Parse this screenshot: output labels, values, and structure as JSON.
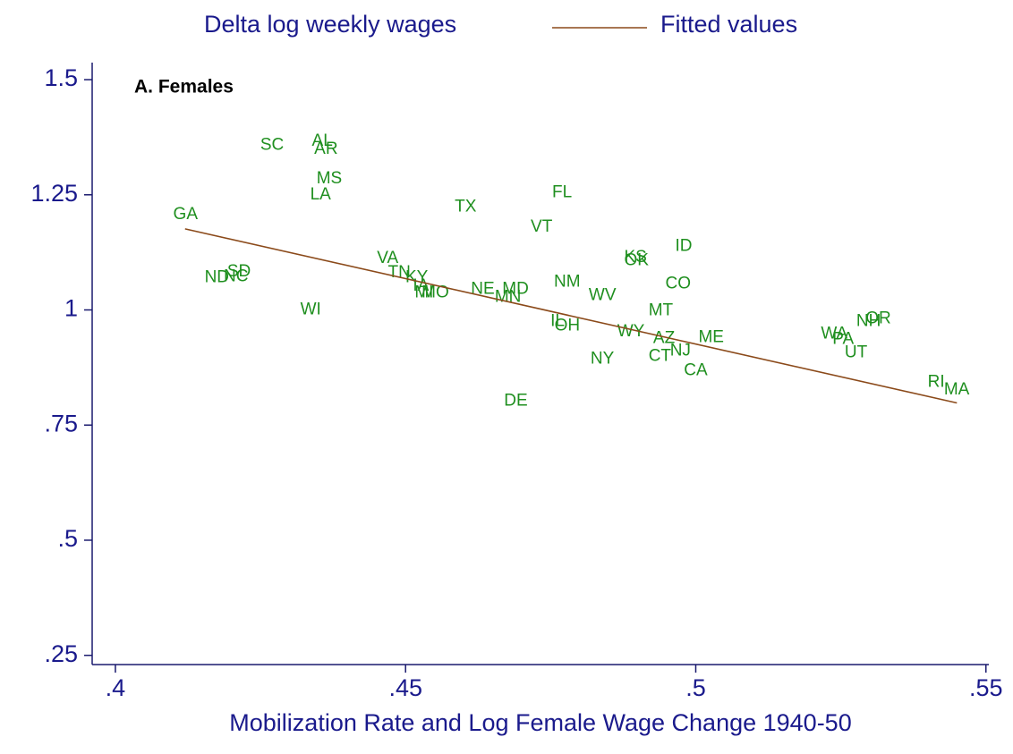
{
  "chart_data": {
    "type": "scatter",
    "title": "A. Females",
    "x_label": "Mobilization Rate and Log Female Wage Change 1940-50",
    "xlim": [
      0.396,
      0.5505
    ],
    "ylim": [
      0.23,
      1.537
    ],
    "xticks": [
      {
        "value": 0.4,
        "label": ".4"
      },
      {
        "value": 0.45,
        "label": ".45"
      },
      {
        "value": 0.5,
        "label": ".5"
      },
      {
        "value": 0.55,
        "label": ".55"
      }
    ],
    "yticks": [
      {
        "value": 0.25,
        "label": ".25"
      },
      {
        "value": 0.5,
        "label": ".5"
      },
      {
        "value": 0.75,
        "label": ".75"
      },
      1,
      1.25,
      1.5
    ],
    "legend": "top",
    "series": [
      {
        "name": "Delta log weekly wages",
        "color": "#1f8f1f",
        "type": "scatter",
        "labels": [
          "GA",
          "SC",
          "AL",
          "AR",
          "MS",
          "LA",
          "TX",
          "FL",
          "VT",
          "ID",
          "KS",
          "OK",
          "CO",
          "NM",
          "WV",
          "MD",
          "NE",
          "MN",
          "VA",
          "TN",
          "KY",
          "NC",
          "SD",
          "ND",
          "MI",
          "MO",
          "IA",
          "IL",
          "OH",
          "WI",
          "MT",
          "NH",
          "OR",
          "WA",
          "PA",
          "UT",
          "WY",
          "AZ",
          "ME",
          "NJ",
          "CT",
          "NY",
          "CA",
          "RI",
          "MA",
          "DE"
        ],
        "x": [
          0.4095,
          0.4245,
          0.4334,
          0.4338,
          0.4342,
          0.4331,
          0.458,
          0.4748,
          0.4711,
          0.496,
          0.4872,
          0.4872,
          0.4943,
          0.4751,
          0.4811,
          0.4662,
          0.4608,
          0.4649,
          0.4446,
          0.4465,
          0.4495,
          0.4182,
          0.4188,
          0.4149,
          0.4511,
          0.4523,
          0.4508,
          0.4745,
          0.4752,
          0.4314,
          0.4914,
          0.5272,
          0.5288,
          0.5211,
          0.5231,
          0.5252,
          0.486,
          0.4922,
          0.5,
          0.4951,
          0.4914,
          0.4814,
          0.4975,
          0.5395,
          0.5423,
          0.4665
        ],
        "values": [
          1.207,
          1.357,
          1.366,
          1.349,
          1.285,
          1.25,
          1.223,
          1.254,
          1.18,
          1.138,
          1.114,
          1.107,
          1.056,
          1.06,
          1.031,
          1.045,
          1.045,
          1.027,
          1.112,
          1.081,
          1.07,
          1.072,
          1.083,
          1.07,
          1.037,
          1.037,
          1.052,
          0.975,
          0.965,
          1.0,
          0.998,
          0.975,
          0.981,
          0.948,
          0.936,
          0.907,
          0.952,
          0.938,
          0.94,
          0.911,
          0.899,
          0.893,
          0.868,
          0.843,
          0.826,
          0.802
        ]
      },
      {
        "name": "Fitted values",
        "color": "#8b4a1a",
        "type": "line",
        "x": [
          0.412,
          0.545
        ],
        "values": [
          1.176,
          0.798
        ]
      }
    ]
  }
}
